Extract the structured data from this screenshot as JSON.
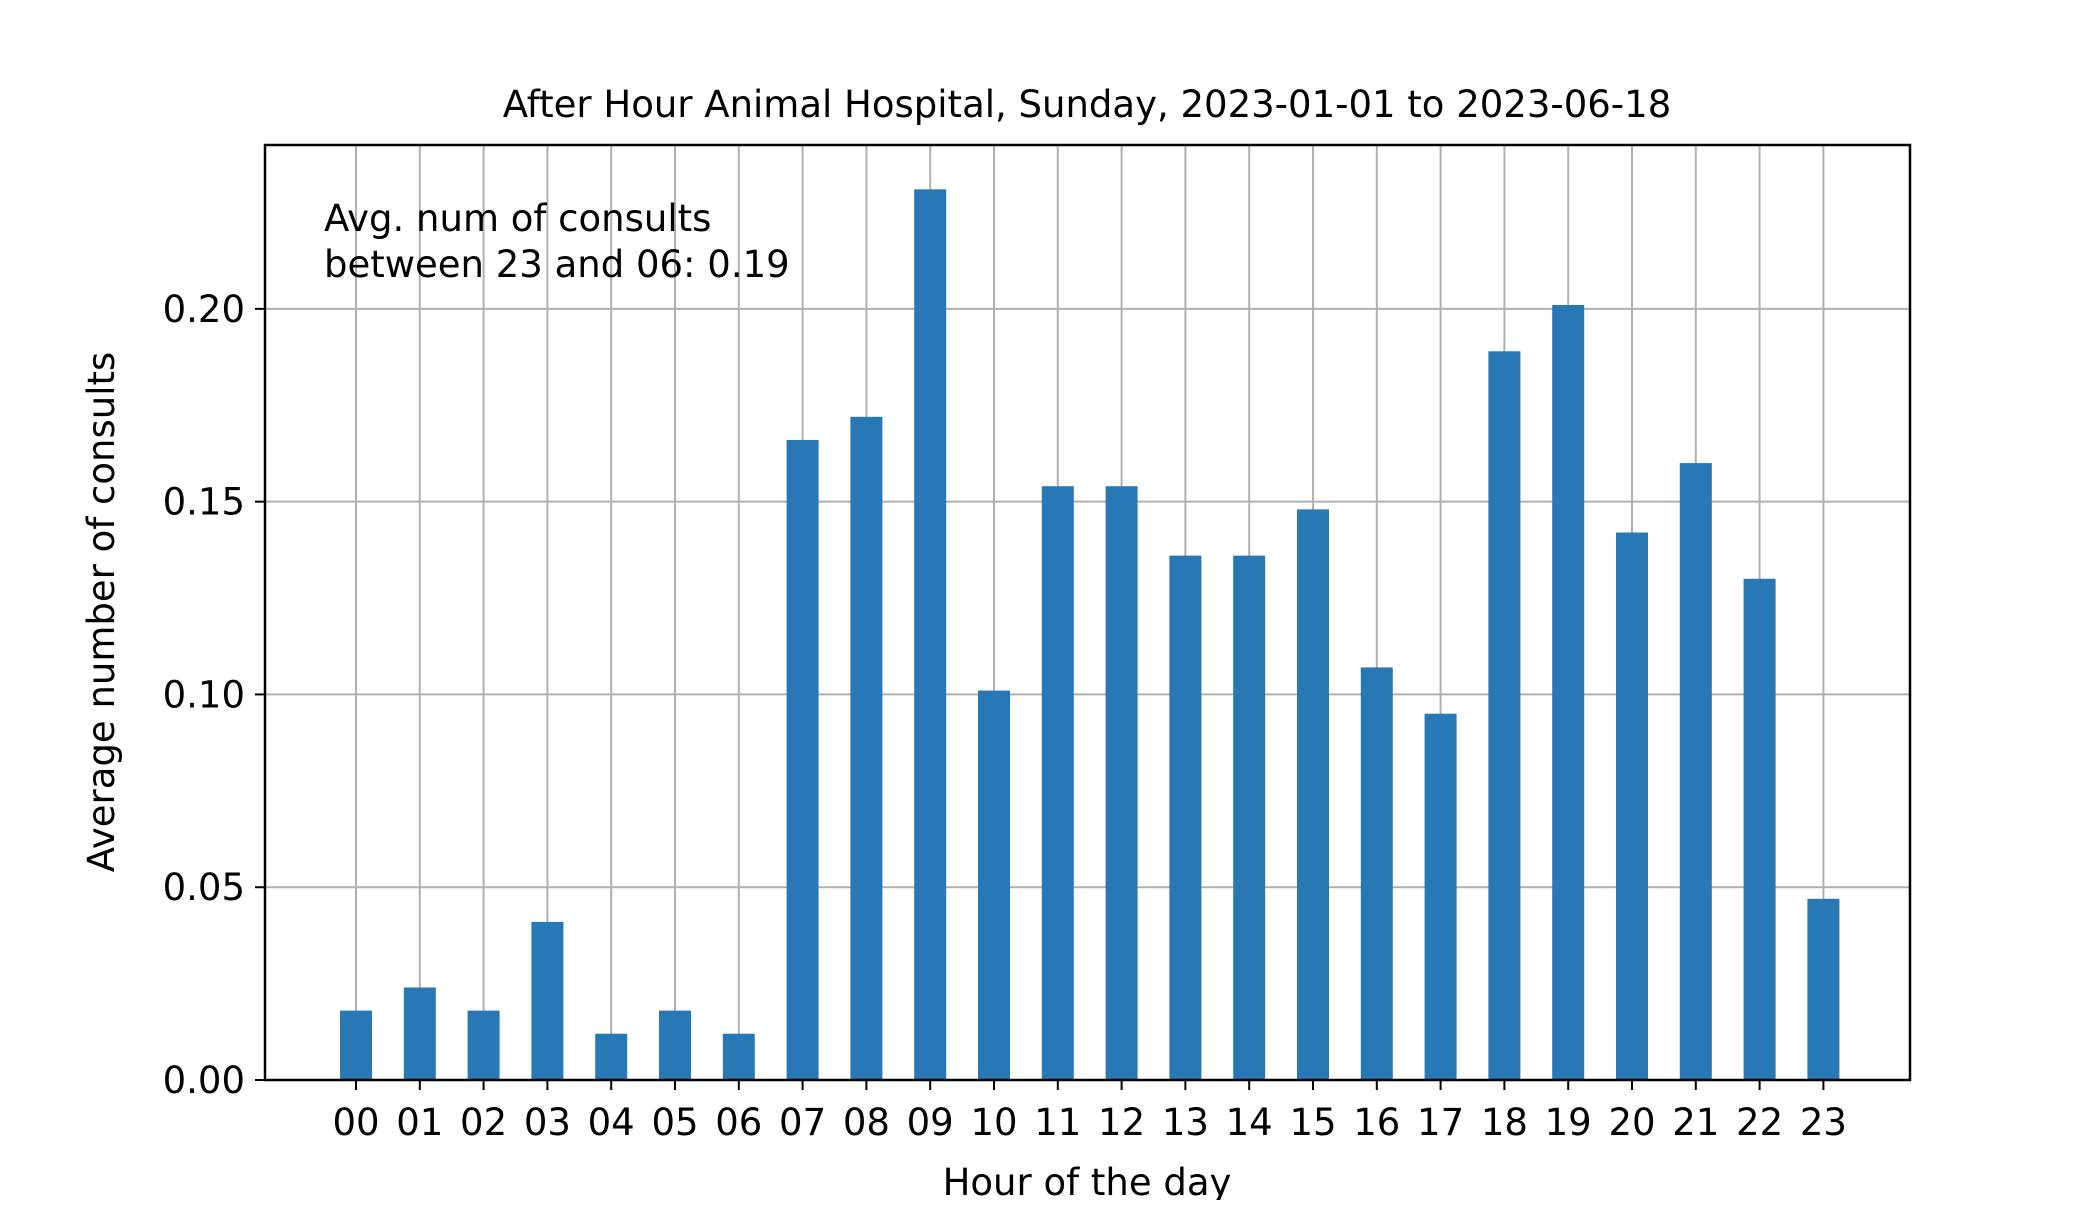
{
  "chart_data": {
    "type": "bar",
    "title": "After Hour Animal Hospital, Sunday, 2023-01-01 to 2023-06-18",
    "xlabel": "Hour of the day",
    "ylabel": "Average number of consults",
    "categories": [
      "00",
      "01",
      "02",
      "03",
      "04",
      "05",
      "06",
      "07",
      "08",
      "09",
      "10",
      "11",
      "12",
      "13",
      "14",
      "15",
      "16",
      "17",
      "18",
      "19",
      "20",
      "21",
      "22",
      "23"
    ],
    "values": [
      0.018,
      0.024,
      0.018,
      0.041,
      0.012,
      0.018,
      0.012,
      0.166,
      0.172,
      0.231,
      0.101,
      0.154,
      0.154,
      0.136,
      0.136,
      0.148,
      0.107,
      0.095,
      0.189,
      0.201,
      0.142,
      0.16,
      0.13,
      0.047
    ],
    "ylim": [
      0,
      0.2425
    ],
    "yticks": [
      0.0,
      0.05,
      0.1,
      0.15,
      0.2
    ],
    "ytick_labels": [
      "0.00",
      "0.05",
      "0.10",
      "0.15",
      "0.20"
    ],
    "grid": true,
    "bar_color": "#2878b5",
    "annotation": [
      "Avg. num of consults",
      "between 23 and 06: 0.19"
    ]
  }
}
